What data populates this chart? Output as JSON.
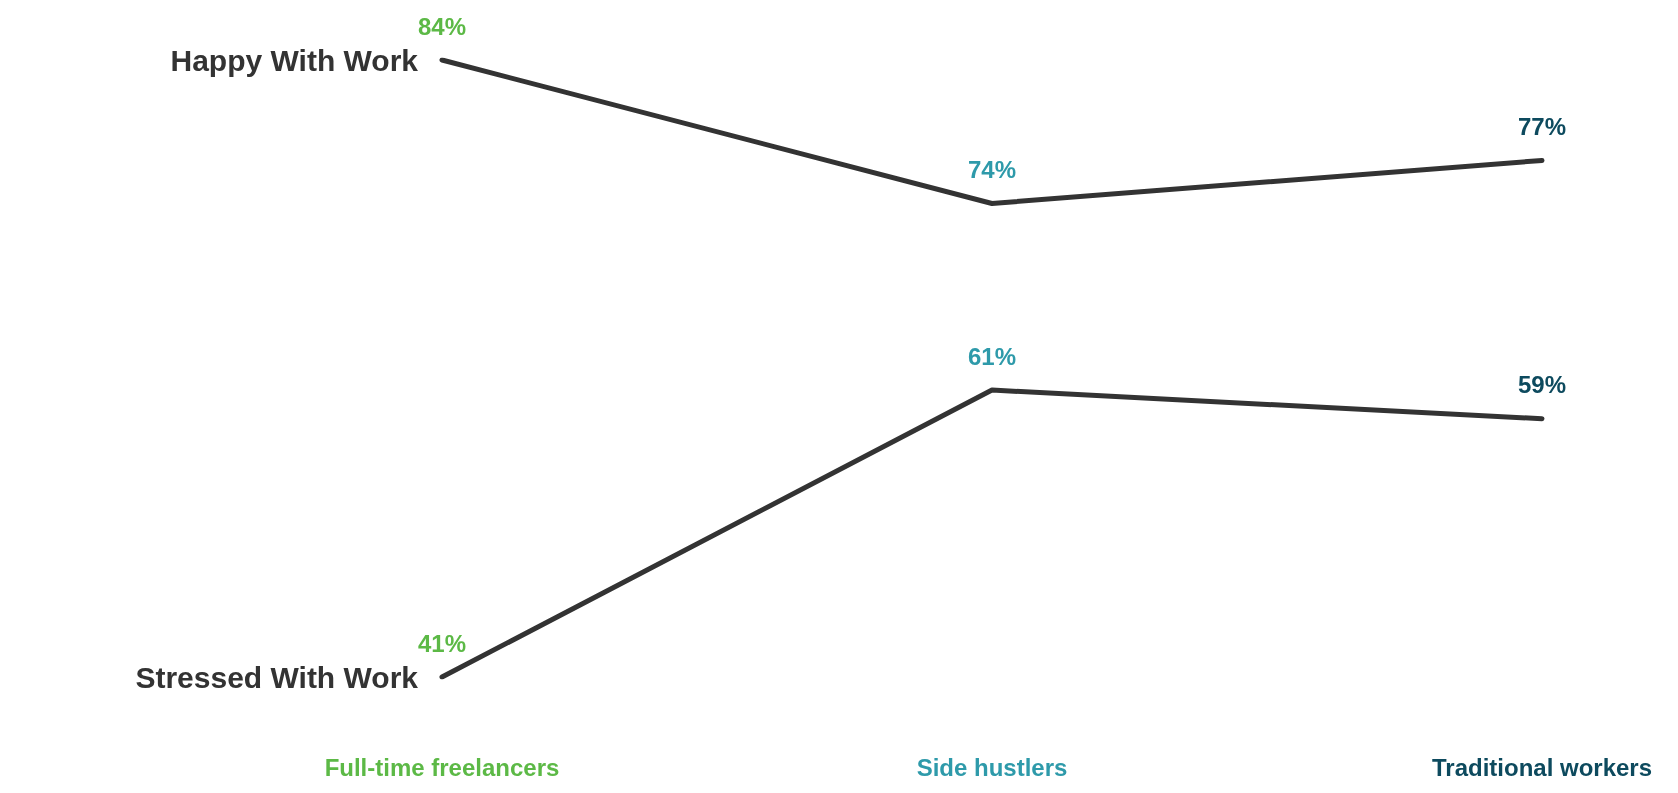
{
  "chart_data": {
    "type": "line",
    "categories": [
      "Full-time freelancers",
      "Side hustlers",
      "Traditional workers"
    ],
    "colors": [
      "#5cb946",
      "#2e9aaa",
      "#0d4a5e"
    ],
    "marker": "none",
    "legend": false,
    "grid": false,
    "series": [
      {
        "name": "Happy With Work",
        "color": "#333333",
        "values": [
          84,
          74,
          77
        ],
        "value_labels": [
          "84%",
          "74%",
          "77%"
        ]
      },
      {
        "name": "Stressed With Work",
        "color": "#333333",
        "values": [
          41,
          61,
          59
        ],
        "value_labels": [
          "41%",
          "61%",
          "59%"
        ]
      }
    ]
  }
}
